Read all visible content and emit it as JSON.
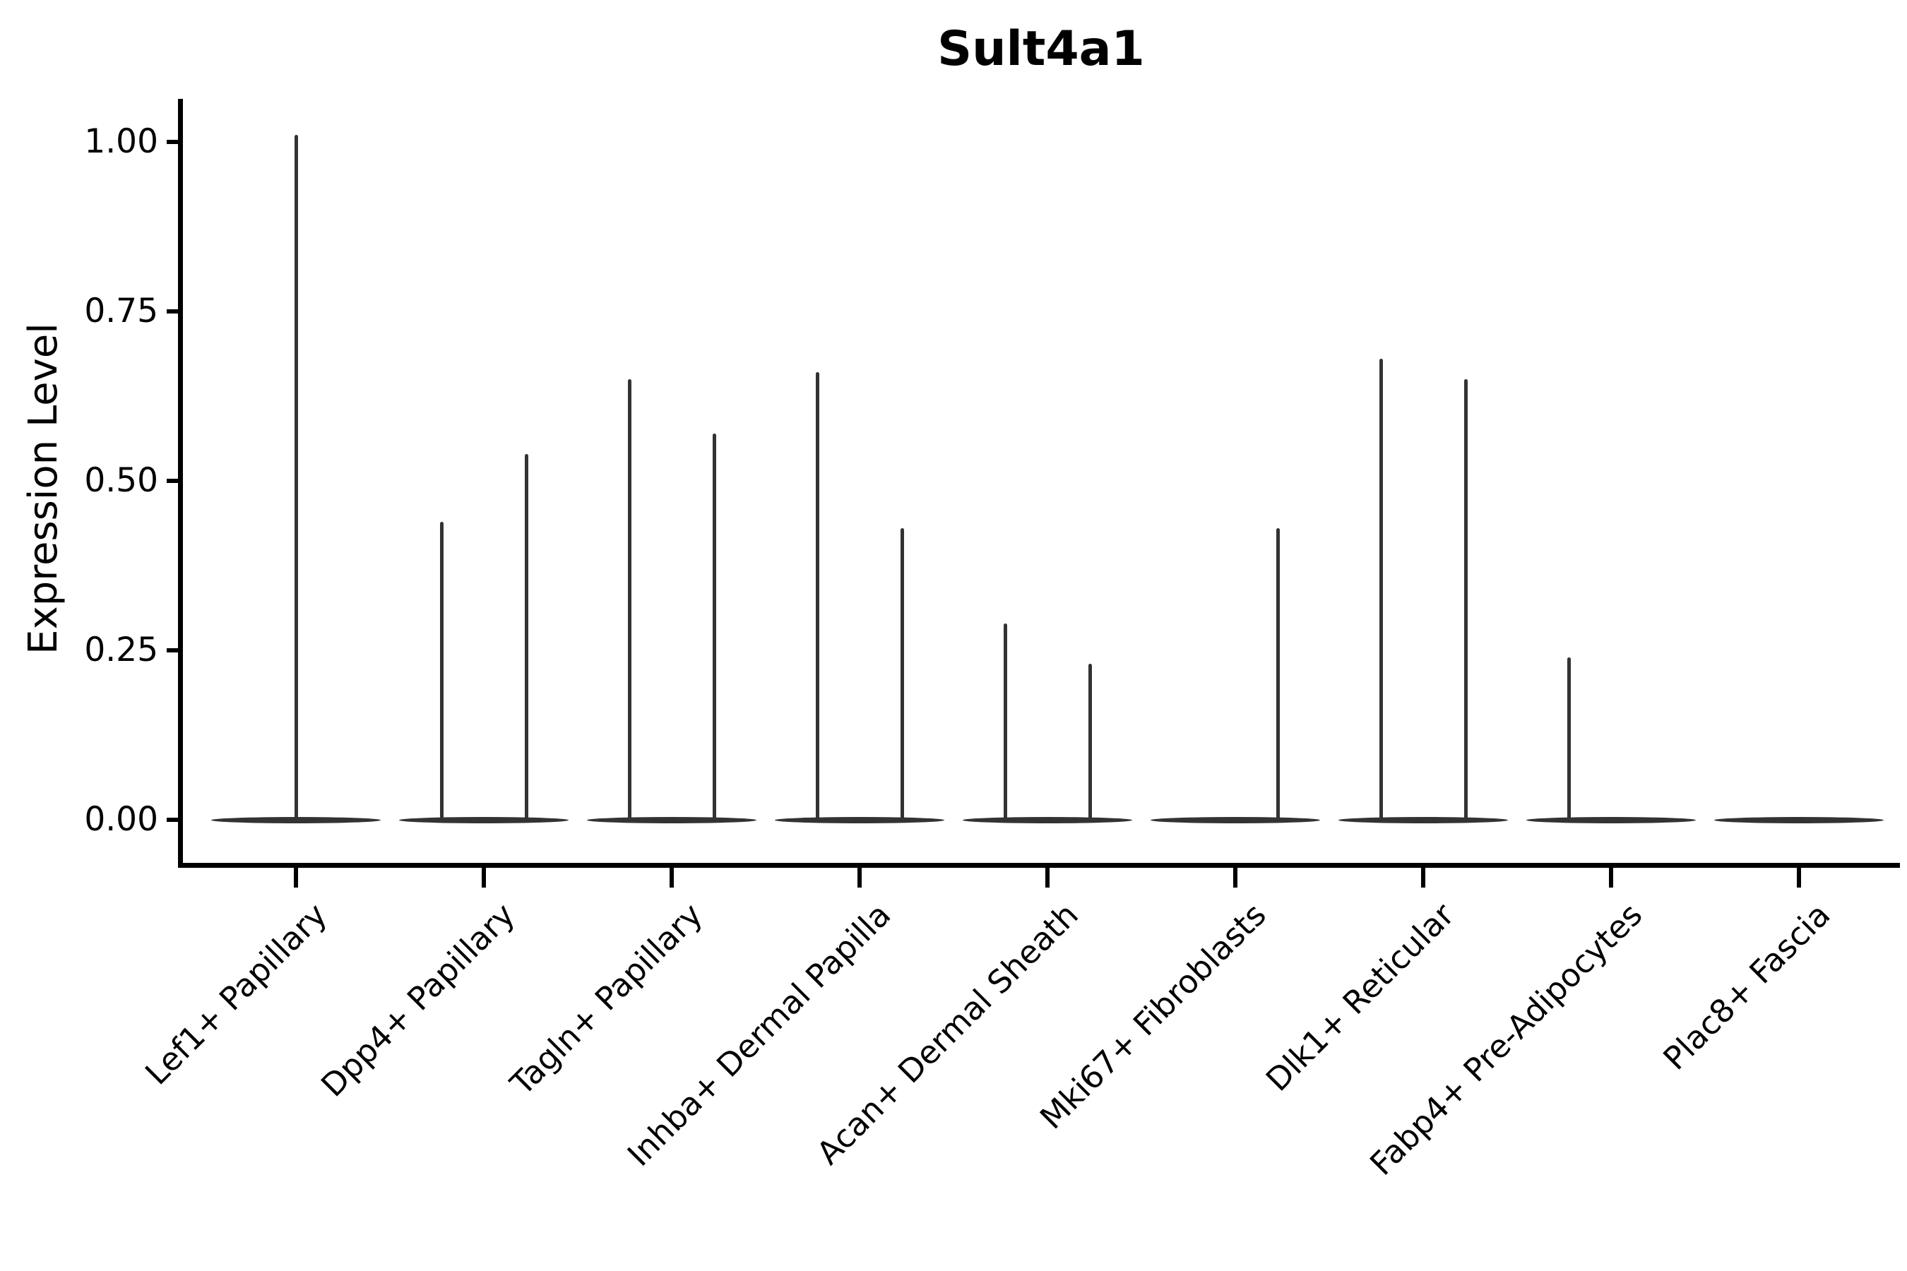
{
  "chart_data": {
    "type": "violin",
    "title": "Sult4a1",
    "ylabel": "Expression Level",
    "xlabel": "",
    "ylim": [
      0,
      1.05
    ],
    "grid": false,
    "legend": "none",
    "ytick_values": [
      0,
      0.25,
      0.5,
      0.75,
      1.0
    ],
    "ytick_labels": [
      "0.00",
      "0.25",
      "0.50",
      "0.75",
      "1.00"
    ],
    "categories": [
      "Lef1+ Papillary",
      "Dpp4+ Papillary",
      "Tagln+ Papillary",
      "Inhba+ Dermal Papilla",
      "Acan+ Dermal Sheath",
      "Mki67+ Fibroblasts",
      "Dlk1+ Reticular",
      "Fabp4+ Pre-Adipocytes",
      "Plac8+ Fascia"
    ],
    "violins": [
      {
        "category": "Lef1+ Papillary",
        "spikes": [
          {
            "side": "center",
            "max": 1.01
          }
        ]
      },
      {
        "category": "Dpp4+ Papillary",
        "spikes": [
          {
            "side": "left",
            "max": 0.44
          },
          {
            "side": "right",
            "max": 0.54
          }
        ]
      },
      {
        "category": "Tagln+ Papillary",
        "spikes": [
          {
            "side": "left",
            "max": 0.65
          },
          {
            "side": "right",
            "max": 0.57
          }
        ]
      },
      {
        "category": "Inhba+ Dermal Papilla",
        "spikes": [
          {
            "side": "left",
            "max": 0.66
          },
          {
            "side": "right",
            "max": 0.43
          }
        ]
      },
      {
        "category": "Acan+ Dermal Sheath",
        "spikes": [
          {
            "side": "left",
            "max": 0.29
          },
          {
            "side": "right",
            "max": 0.23
          }
        ]
      },
      {
        "category": "Mki67+ Fibroblasts",
        "spikes": [
          {
            "side": "right",
            "max": 0.43
          }
        ]
      },
      {
        "category": "Dlk1+ Reticular",
        "spikes": [
          {
            "side": "left",
            "max": 0.68
          },
          {
            "side": "right",
            "max": 0.65
          }
        ]
      },
      {
        "category": "Fabp4+ Pre-Adipocytes",
        "spikes": [
          {
            "side": "left",
            "max": 0.24
          }
        ]
      },
      {
        "category": "Plac8+ Fascia",
        "spikes": []
      }
    ],
    "colors": {
      "axis": "#000000",
      "text": "#000000",
      "violin": "#333333"
    }
  }
}
